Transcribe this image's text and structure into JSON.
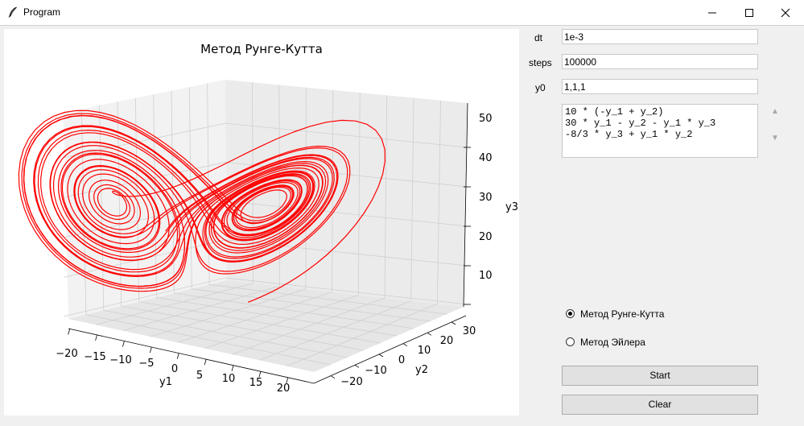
{
  "window": {
    "title": "Program",
    "icon": "feather-icon"
  },
  "plot": {
    "title": "Метод Рунге-Кутта",
    "xlabel": "y1",
    "ylabel": "y2",
    "zlabel": "y3",
    "y1_ticks": [
      "−20",
      "−15",
      "−10",
      "−5",
      "0",
      "5",
      "10",
      "15",
      "20"
    ],
    "y2_ticks": [
      "−20",
      "−10",
      "0",
      "10",
      "20",
      "30"
    ],
    "y3_ticks": [
      "10",
      "20",
      "30",
      "40",
      "50"
    ],
    "line_color": "#ff0000"
  },
  "chart_data": {
    "type": "line",
    "projection": "3d",
    "title": "Метод Рунге-Кутта",
    "xlabel": "y1",
    "ylabel": "y2",
    "zlabel": "y3",
    "xlim": [
      -20,
      20
    ],
    "ylim": [
      -25,
      30
    ],
    "zlim": [
      5,
      50
    ],
    "grid": true,
    "series": [
      {
        "color": "#ff0000"
      }
    ]
  },
  "controls": {
    "dt": {
      "label": "dt",
      "value": "1e-3"
    },
    "steps": {
      "label": "steps",
      "value": "100000"
    },
    "y0": {
      "label": "y0",
      "value": "1,1,1"
    },
    "equations": "10 * (-y_1 + y_2)\n30 * y_1 - y_2 - y_1 * y_3\n-8/3 * y_3 + y_1 * y_2",
    "methods": [
      {
        "label": "Метод Рунге-Кутта",
        "selected": true
      },
      {
        "label": "Метод Эйлера",
        "selected": false
      }
    ],
    "start_label": "Start",
    "clear_label": "Clear"
  }
}
